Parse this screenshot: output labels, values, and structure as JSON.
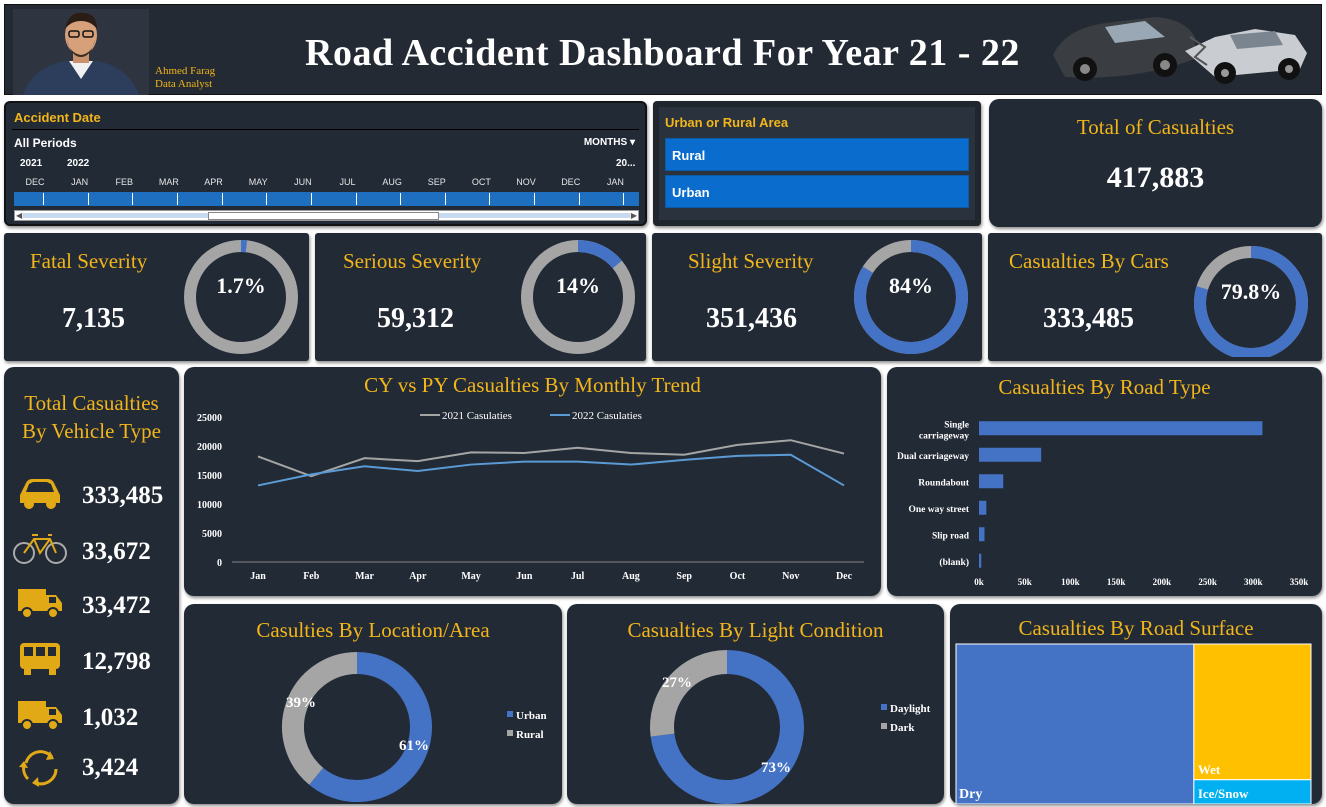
{
  "header": {
    "title": "Road Accident Dashboard For Year 21 - 22",
    "author_name": "Ahmed Farag",
    "author_role": "Data Analyst"
  },
  "date_slicer": {
    "title": "Accident Date",
    "period_label": "All Periods",
    "granularity": "MONTHS",
    "years": [
      "2021",
      "2022"
    ],
    "end_year": "20...",
    "months": [
      "DEC",
      "JAN",
      "FEB",
      "MAR",
      "APR",
      "MAY",
      "JUN",
      "JUL",
      "AUG",
      "SEP",
      "OCT",
      "NOV",
      "DEC",
      "JAN"
    ]
  },
  "area_slicer": {
    "title": "Urban or Rural Area",
    "options": [
      "Rural",
      "Urban"
    ]
  },
  "kpis": {
    "total": {
      "title": "Total of Casualties",
      "value": "417,883"
    },
    "fatal": {
      "title": "Fatal Severity",
      "value": "7,135",
      "pct_label": "1.7%",
      "pct": 1.7
    },
    "serious": {
      "title": "Serious Severity",
      "value": "59,312",
      "pct_label": "14%",
      "pct": 14
    },
    "slight": {
      "title": "Slight Severity",
      "value": "351,436",
      "pct_label": "84%",
      "pct": 84
    },
    "cars": {
      "title": "Casualties By Cars",
      "value": "333,485",
      "pct_label": "79.8%",
      "pct": 79.8
    }
  },
  "vehicles": {
    "title_line1": "Total Casualties",
    "title_line2": "By Vehicle Type",
    "items": [
      {
        "icon": "car-icon",
        "value": "333,485"
      },
      {
        "icon": "bicycle-icon",
        "value": "33,672"
      },
      {
        "icon": "van-icon",
        "value": "33,472"
      },
      {
        "icon": "bus-icon",
        "value": "12,798"
      },
      {
        "icon": "truck-icon",
        "value": "1,032"
      },
      {
        "icon": "recycle-icon",
        "value": "3,424"
      }
    ]
  },
  "colors": {
    "accent": "#f2b51a",
    "series_2022": "#5b9bd5",
    "series_2021": "#a5a5a5",
    "bar": "#4472c4",
    "card": "#222a36"
  },
  "chart_data": [
    {
      "type": "line",
      "title": "CY vs PY Casualties By Monthly Trend",
      "categories": [
        "Jan",
        "Feb",
        "Mar",
        "Apr",
        "May",
        "Jun",
        "Jul",
        "Aug",
        "Sep",
        "Oct",
        "Nov",
        "Dec"
      ],
      "series": [
        {
          "name": "2021 Casulaties",
          "values": [
            18200,
            14800,
            17900,
            17400,
            18900,
            18800,
            19700,
            18800,
            18500,
            20200,
            21000,
            18700
          ]
        },
        {
          "name": "2022 Casulaties",
          "values": [
            13200,
            15100,
            16500,
            15700,
            16800,
            17300,
            17300,
            16800,
            17600,
            18300,
            18500,
            13200
          ]
        }
      ],
      "yticks": [
        "25000",
        "20000",
        "15000",
        "10000",
        "5000",
        "0"
      ],
      "ylim": [
        0,
        25000
      ]
    },
    {
      "type": "bar",
      "orientation": "horizontal",
      "title": "Casualties By Road Type",
      "categories": [
        [
          "Single",
          "carriageway"
        ],
        [
          "Dual carriageway"
        ],
        [
          "Roundabout"
        ],
        [
          "One way street"
        ],
        [
          "Slip road"
        ],
        [
          "(blank)"
        ]
      ],
      "values": [
        310000,
        68000,
        26500,
        8000,
        6000,
        2500
      ],
      "xticks": [
        "0k",
        "50k",
        "100k",
        "150k",
        "200k",
        "250k",
        "300k",
        "350k"
      ],
      "xlim": [
        0,
        350000
      ]
    },
    {
      "type": "pie",
      "title": "Casulties By Location/Area",
      "slices": [
        {
          "name": "Urban",
          "value": 61,
          "label": "61%"
        },
        {
          "name": "Rural",
          "value": 39,
          "label": "39%"
        }
      ]
    },
    {
      "type": "pie",
      "title": "Casualties By Light Condition",
      "slices": [
        {
          "name": "Daylight",
          "value": 73,
          "label": "73%"
        },
        {
          "name": "Dark",
          "value": 27,
          "label": "27%"
        }
      ]
    },
    {
      "type": "treemap",
      "title": "Casualties By Road Surface",
      "items": [
        {
          "name": "Dry",
          "value": 67,
          "color": "#4472c4"
        },
        {
          "name": "Wet",
          "value": 28,
          "color": "#ffc000"
        },
        {
          "name": "Ice/Snow",
          "value": 5,
          "color": "#00b0f0"
        }
      ]
    }
  ]
}
